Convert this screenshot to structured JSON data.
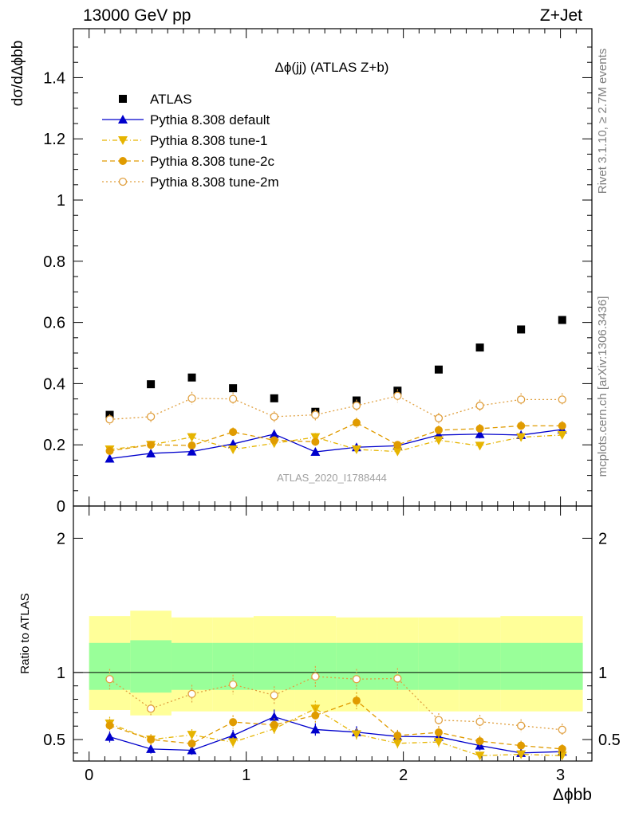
{
  "header": {
    "left": "13000 GeV pp",
    "right": "Z+Jet"
  },
  "side_labels": {
    "rivet": "Rivet 3.1.10, ≥ 2.7M events",
    "mcplots": "mcplots.cern.ch [arXiv:1306.3436]"
  },
  "colors": {
    "atlas": "#000000",
    "default": "#0000cc",
    "tune1": "#e6b400",
    "tune2c": "#e09b00",
    "tune2m": "#e0a040",
    "band_inner": "#99ff99",
    "band_outer": "#ffff99"
  },
  "chart_data": [
    {
      "type": "scatter",
      "title": "Δϕ(jj) (ATLAS Z+b)",
      "ylabel": "dσ/dΔϕbb",
      "watermark": "ATLAS_2020_I1788444",
      "xlim": [
        -0.1,
        3.2
      ],
      "ylim": [
        0,
        1.56
      ],
      "yticks": [
        "0",
        "0.2",
        "0.4",
        "0.6",
        "0.8",
        "1",
        "1.2",
        "1.4"
      ],
      "x": [
        0.131,
        0.393,
        0.654,
        0.916,
        1.178,
        1.44,
        1.702,
        1.963,
        2.225,
        2.487,
        2.749,
        3.011
      ],
      "series": [
        {
          "name": "ATLAS",
          "key": "atlas",
          "values": [
            0.298,
            0.398,
            0.42,
            0.385,
            0.352,
            0.308,
            0.345,
            0.377,
            0.446,
            0.518,
            0.577,
            0.608
          ]
        },
        {
          "name": "Pythia 8.308 default",
          "key": "default",
          "values": [
            0.155,
            0.172,
            0.178,
            0.203,
            0.235,
            0.177,
            0.192,
            0.197,
            0.232,
            0.235,
            0.232,
            0.25
          ]
        },
        {
          "name": "Pythia 8.308 tune-1",
          "key": "tune1",
          "values": [
            0.185,
            0.2,
            0.225,
            0.185,
            0.205,
            0.225,
            0.185,
            0.178,
            0.215,
            0.197,
            0.225,
            0.232
          ]
        },
        {
          "name": "Pythia 8.308 tune-2c",
          "key": "tune2c",
          "values": [
            0.18,
            0.2,
            0.198,
            0.242,
            0.215,
            0.21,
            0.272,
            0.2,
            0.248,
            0.253,
            0.262,
            0.262
          ]
        },
        {
          "name": "Pythia 8.308 tune-2m",
          "key": "tune2m",
          "values": [
            0.283,
            0.292,
            0.352,
            0.35,
            0.292,
            0.298,
            0.328,
            0.36,
            0.287,
            0.328,
            0.348,
            0.348
          ]
        }
      ]
    },
    {
      "type": "scatter",
      "ylabel": "Ratio to ATLAS",
      "xlabel": "Δϕbb",
      "xlim": [
        -0.1,
        3.2
      ],
      "ylim": [
        0.34,
        2.24
      ],
      "xticks": [
        "0",
        "1",
        "2",
        "3"
      ],
      "yticks": [
        "0.5",
        "1",
        "2"
      ],
      "x": [
        0.131,
        0.393,
        0.654,
        0.916,
        1.178,
        1.44,
        1.702,
        1.963,
        2.225,
        2.487,
        2.749,
        3.011
      ],
      "band_inner": [
        [
          0.87,
          1.22
        ],
        [
          0.85,
          1.24
        ],
        [
          0.87,
          1.22
        ],
        [
          0.87,
          1.22
        ],
        [
          0.87,
          1.22
        ],
        [
          0.87,
          1.22
        ],
        [
          0.87,
          1.22
        ],
        [
          0.87,
          1.22
        ],
        [
          0.87,
          1.22
        ],
        [
          0.87,
          1.22
        ],
        [
          0.87,
          1.22
        ],
        [
          0.87,
          1.22
        ]
      ],
      "band_outer": [
        [
          0.72,
          1.42
        ],
        [
          0.68,
          1.46
        ],
        [
          0.71,
          1.41
        ],
        [
          0.71,
          1.41
        ],
        [
          0.71,
          1.42
        ],
        [
          0.71,
          1.42
        ],
        [
          0.71,
          1.41
        ],
        [
          0.71,
          1.41
        ],
        [
          0.71,
          1.41
        ],
        [
          0.71,
          1.41
        ],
        [
          0.71,
          1.42
        ],
        [
          0.71,
          1.42
        ]
      ],
      "series": [
        {
          "name": "Pythia 8.308 default",
          "key": "default",
          "values": [
            0.52,
            0.43,
            0.42,
            0.53,
            0.67,
            0.575,
            0.555,
            0.523,
            0.52,
            0.455,
            0.4,
            0.41
          ]
        },
        {
          "name": "Pythia 8.308 tune-1",
          "key": "tune1",
          "values": [
            0.62,
            0.5,
            0.535,
            0.48,
            0.58,
            0.73,
            0.54,
            0.472,
            0.482,
            0.38,
            0.39,
            0.38
          ]
        },
        {
          "name": "Pythia 8.308 tune-2c",
          "key": "tune2c",
          "values": [
            0.605,
            0.5,
            0.47,
            0.63,
            0.61,
            0.68,
            0.79,
            0.53,
            0.553,
            0.488,
            0.455,
            0.43
          ]
        },
        {
          "name": "Pythia 8.308 tune-2m",
          "key": "tune2m",
          "values": [
            0.95,
            0.73,
            0.84,
            0.91,
            0.83,
            0.97,
            0.95,
            0.955,
            0.645,
            0.633,
            0.603,
            0.573
          ]
        }
      ]
    }
  ]
}
